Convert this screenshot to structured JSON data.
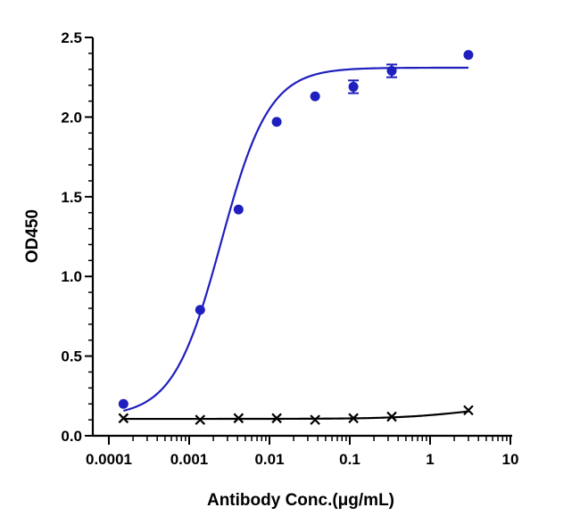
{
  "chart_data": {
    "type": "scatter",
    "xlabel": "Antibody Conc.(μg/mL)",
    "ylabel": "OD450",
    "xscale": "log",
    "xlim": [
      0.0001,
      10
    ],
    "ylim": [
      0,
      2.5
    ],
    "x_ticks": [
      0.0001,
      0.001,
      0.01,
      0.1,
      1,
      10
    ],
    "x_tick_labels": [
      "0.0001",
      "0.001",
      "0.01",
      "0.1",
      "1",
      "10"
    ],
    "y_ticks": [
      0,
      0.5,
      1,
      1.5,
      2,
      2.5
    ],
    "y_tick_labels": [
      "0.0",
      "0.5",
      "1.0",
      "1.5",
      "2.0",
      "2.5"
    ],
    "grid": false,
    "legend": "none",
    "series": [
      {
        "marker": "circle",
        "color": "#1f1fbf",
        "x": [
          0.000152,
          0.00137,
          0.00412,
          0.0123,
          0.037,
          0.111,
          0.333,
          3.0
        ],
        "y": [
          0.2,
          0.79,
          1.42,
          1.97,
          2.13,
          2.19,
          2.29,
          2.39
        ],
        "error": [
          0,
          0,
          0,
          0,
          0,
          0.04,
          0.04,
          0
        ],
        "fit": {
          "model": "4PL",
          "bottom": 0.12,
          "top": 2.31,
          "ec50": 0.0025,
          "hill": 1.45
        }
      },
      {
        "marker": "x",
        "color": "#000000",
        "x": [
          0.000152,
          0.00137,
          0.00412,
          0.0123,
          0.037,
          0.111,
          0.333,
          3.0
        ],
        "y": [
          0.11,
          0.1,
          0.11,
          0.11,
          0.1,
          0.11,
          0.12,
          0.16
        ],
        "fit": {
          "model": "4PL",
          "bottom": 0.106,
          "top": 0.2,
          "ec50": 3.0,
          "hill": 1.0
        }
      }
    ]
  }
}
